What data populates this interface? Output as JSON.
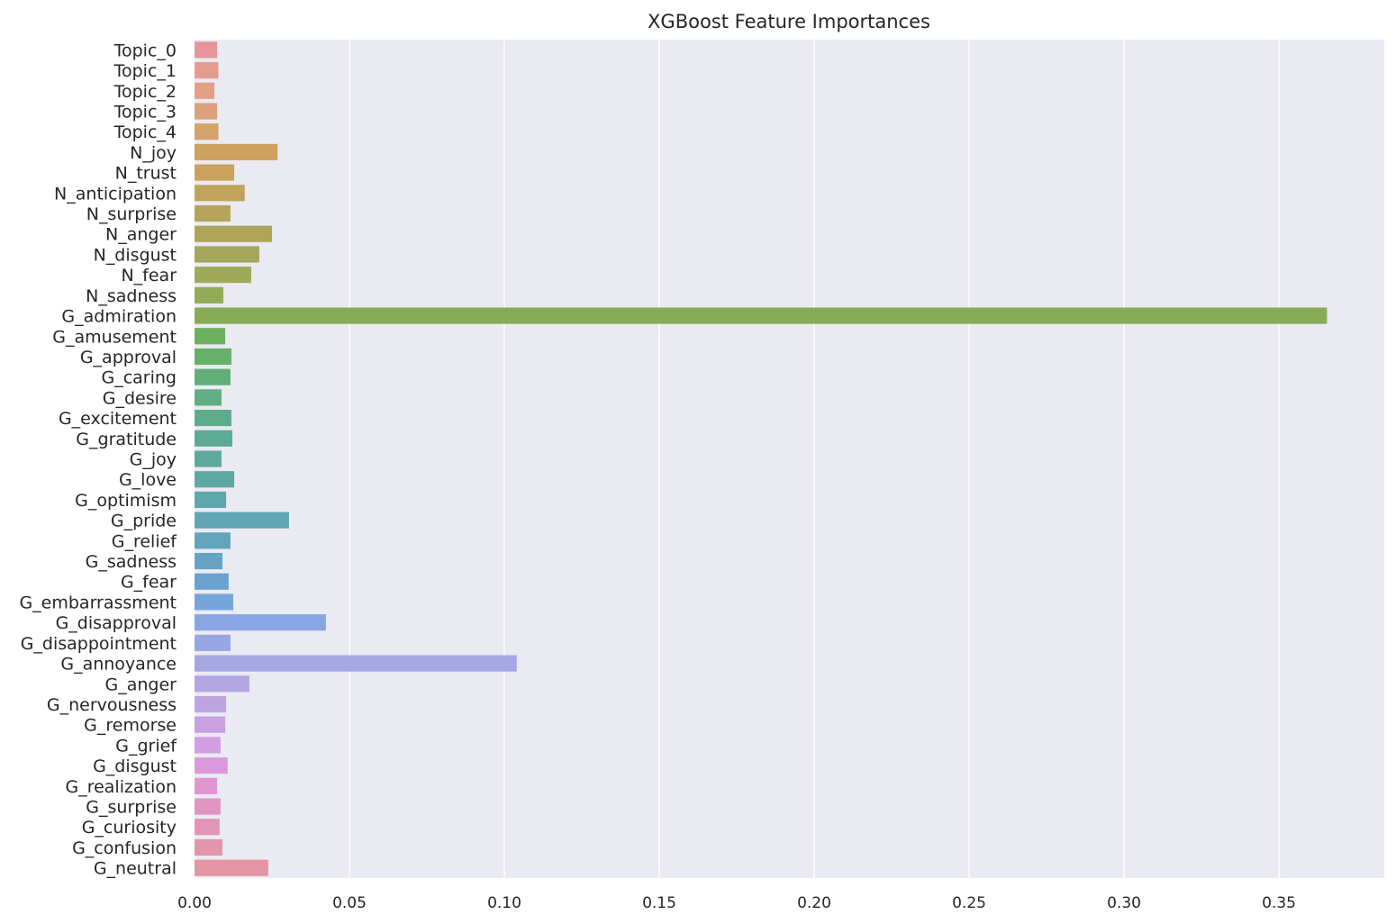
{
  "chart_data": {
    "type": "bar",
    "orientation": "horizontal",
    "title": "XGBoost Feature Importances",
    "xlabel": "",
    "ylabel": "",
    "xlim": [
      0,
      0.384
    ],
    "xticks": [
      0.0,
      0.05,
      0.1,
      0.15,
      0.2,
      0.25,
      0.3,
      0.35
    ],
    "xtick_labels": [
      "0.00",
      "0.05",
      "0.10",
      "0.15",
      "0.20",
      "0.25",
      "0.30",
      "0.35"
    ],
    "grid": "on (vertical lines)",
    "legend": "none",
    "palette": "husl",
    "categories": [
      "Topic_0",
      "Topic_1",
      "Topic_2",
      "Topic_3",
      "Topic_4",
      "N_joy",
      "N_trust",
      "N_anticipation",
      "N_surprise",
      "N_anger",
      "N_disgust",
      "N_fear",
      "N_sadness",
      "G_admiration",
      "G_amusement",
      "G_approval",
      "G_caring",
      "G_desire",
      "G_excitement",
      "G_gratitude",
      "G_joy",
      "G_love",
      "G_optimism",
      "G_pride",
      "G_relief",
      "G_sadness",
      "G_fear",
      "G_embarrassment",
      "G_disapproval",
      "G_disappointment",
      "G_annoyance",
      "G_anger",
      "G_nervousness",
      "G_remorse",
      "G_grief",
      "G_disgust",
      "G_realization",
      "G_surprise",
      "G_curiosity",
      "G_confusion",
      "G_neutral"
    ],
    "values": [
      0.0073,
      0.0077,
      0.0064,
      0.0073,
      0.0077,
      0.0268,
      0.0128,
      0.0162,
      0.0116,
      0.025,
      0.0209,
      0.0183,
      0.0093,
      0.3655,
      0.0099,
      0.0119,
      0.0116,
      0.0087,
      0.0119,
      0.0122,
      0.0087,
      0.0128,
      0.0102,
      0.0305,
      0.0116,
      0.009,
      0.011,
      0.0125,
      0.0424,
      0.0116,
      0.104,
      0.0177,
      0.0102,
      0.0099,
      0.0084,
      0.0107,
      0.0073,
      0.0084,
      0.0081,
      0.009,
      0.0238
    ],
    "colors": [
      "#e6959b",
      "#e49c8f",
      "#e3a085",
      "#dba17a",
      "#d4a26b",
      "#cfa25e",
      "#c9a35c",
      "#c0a35b",
      "#b7a45b",
      "#aea55a",
      "#a5a85b",
      "#9eaa5a",
      "#94ab5a",
      "#87ab57",
      "#6cb05f",
      "#66b06c",
      "#62ae78",
      "#61ad84",
      "#5fac8d",
      "#5eab95",
      "#5ea99d",
      "#5ea8a4",
      "#5ea7ab",
      "#60a6b4",
      "#62a5bd",
      "#66a3c6",
      "#6aa2cf",
      "#78a4dc",
      "#8aa6e2",
      "#98a6e3",
      "#a6a6e3",
      "#b3a6e2",
      "#bfa4e2",
      "#c9a0e2",
      "#d29de1",
      "#db98dd",
      "#df96cf",
      "#e195c3",
      "#e295b7",
      "#e395ac",
      "#e495a3"
    ]
  }
}
